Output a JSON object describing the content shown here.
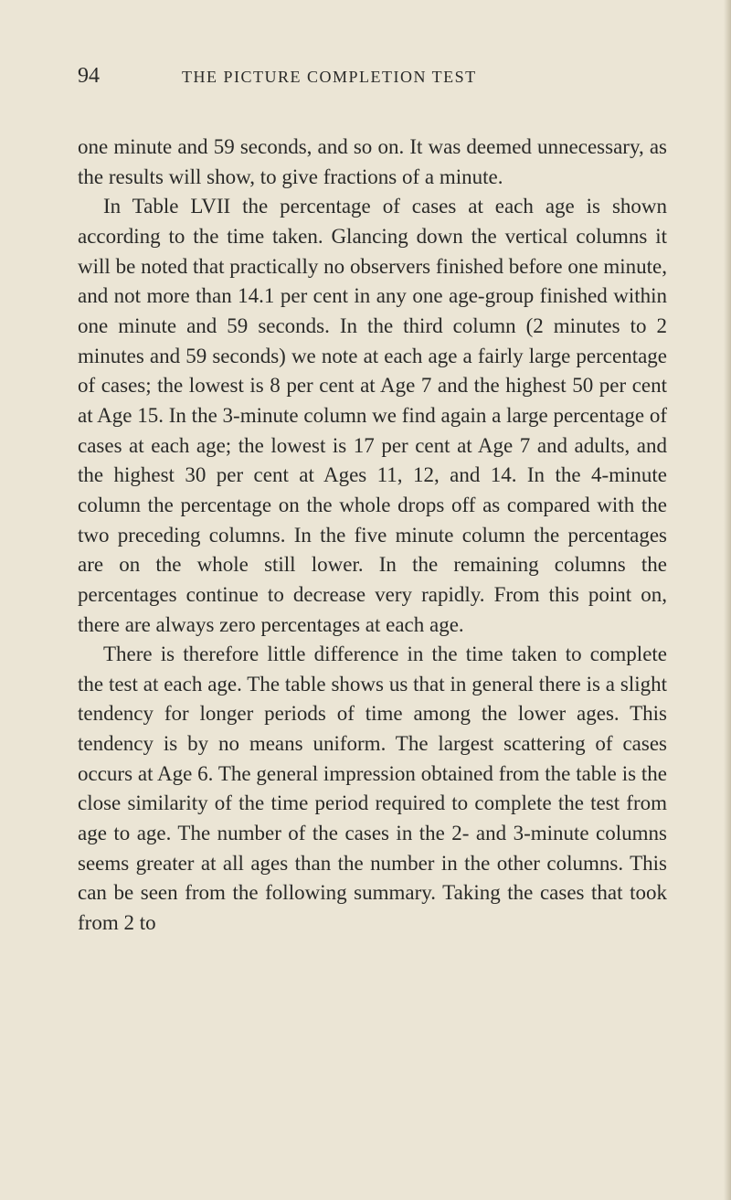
{
  "page": {
    "number": "94",
    "running_title": "THE PICTURE COMPLETION TEST"
  },
  "paragraphs": {
    "p1": "one minute and 59 seconds, and so on. It was deemed unnecessary, as the results will show, to give fractions of a minute.",
    "p2": "In Table LVII the percentage of cases at each age is shown according to the time taken. Glancing down the vertical columns it will be noted that practically no observers finished before one minute, and not more than 14.1 per cent in any one age-group finished within one minute and 59 seconds. In the third column (2 minutes to 2 minutes and 59 seconds) we note at each age a fairly large percentage of cases; the lowest is 8 per cent at Age 7 and the highest 50 per cent at Age 15. In the 3-minute column we find again a large percentage of cases at each age; the lowest is 17 per cent at Age 7 and adults, and the highest 30 per cent at Ages 11, 12, and 14. In the 4-minute column the percentage on the whole drops off as compared with the two preceding columns. In the five minute column the percentages are on the whole still lower. In the remaining columns the percentages continue to decrease very rapidly. From this point on, there are always zero percentages at each age.",
    "p3": "There is therefore little difference in the time taken to complete the test at each age. The table shows us that in general there is a slight tendency for longer periods of time among the lower ages. This tendency is by no means uniform. The largest scattering of cases occurs at Age 6. The general impression obtained from the table is the close similarity of the time period required to complete the test from age to age. The number of the cases in the 2- and 3-minute columns seems greater at all ages than the number in the other columns. This can be seen from the following summary. Taking the cases that took from 2 to"
  },
  "style": {
    "background_color": "#ebe5d5",
    "text_color": "#2a2a28",
    "body_font_size": 23,
    "header_font_size": 18,
    "page_number_font_size": 24,
    "line_height": 1.42
  }
}
